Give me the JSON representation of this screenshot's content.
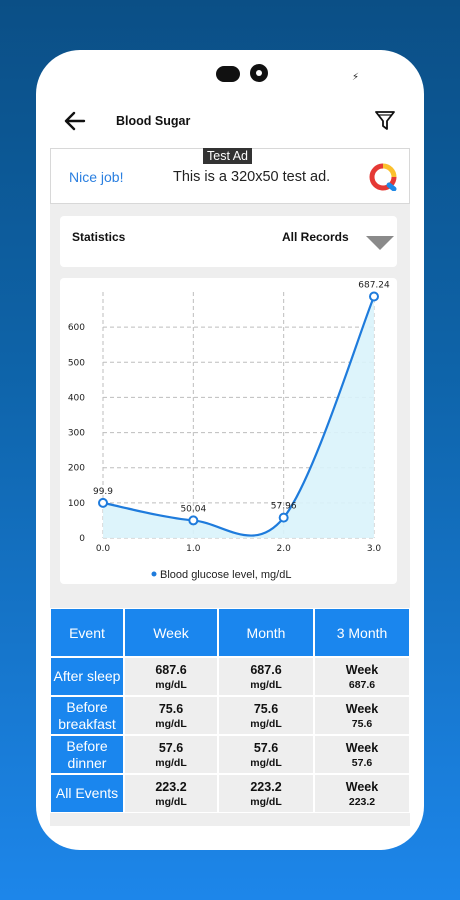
{
  "header": {
    "title": "Blood Sugar"
  },
  "ad": {
    "badge": "Test Ad",
    "nice": "Nice job!",
    "text": "This is a 320x50 test ad."
  },
  "statistics": {
    "label": "Statistics",
    "selected": "All Records"
  },
  "chart_data": {
    "type": "line",
    "x": [
      0.0,
      1.0,
      2.0,
      3.0
    ],
    "x_ticks": [
      "0.0",
      "1.0",
      "2.0",
      "3.0"
    ],
    "y_ticks": [
      "0",
      "100",
      "200",
      "300",
      "400",
      "500",
      "600"
    ],
    "values": [
      99.9,
      50.04,
      57.96,
      687.24
    ],
    "value_labels": [
      "99.9",
      "50.04",
      "57.96",
      "687.24"
    ],
    "series_name": "Blood glucose level, mg/dL",
    "xlim": [
      0,
      3
    ],
    "ylim": [
      0,
      700
    ],
    "grid": true,
    "legend": "bottom-center",
    "line_color": "#1e7bdc",
    "fill_color": "#d9f3fb"
  },
  "table": {
    "headers": [
      "Event",
      "Week",
      "Month",
      "3 Month"
    ],
    "rows": [
      {
        "event": "After sleep",
        "week": "687.6",
        "week_unit": "mg/dL",
        "month": "687.6",
        "month_unit": "mg/dL",
        "three_month": "Week",
        "three_month_value": "687.6"
      },
      {
        "event": "Before breakfast",
        "week": "75.6",
        "week_unit": "mg/dL",
        "month": "75.6",
        "month_unit": "mg/dL",
        "three_month": "Week",
        "three_month_value": "75.6"
      },
      {
        "event": "Before dinner",
        "week": "57.6",
        "week_unit": "mg/dL",
        "month": "57.6",
        "month_unit": "mg/dL",
        "three_month": "Week",
        "three_month_value": "57.6"
      },
      {
        "event": "All Events",
        "week": "223.2",
        "week_unit": "mg/dL",
        "month": "223.2",
        "month_unit": "mg/dL",
        "three_month": "Week",
        "three_month_value": "223.2"
      }
    ]
  }
}
